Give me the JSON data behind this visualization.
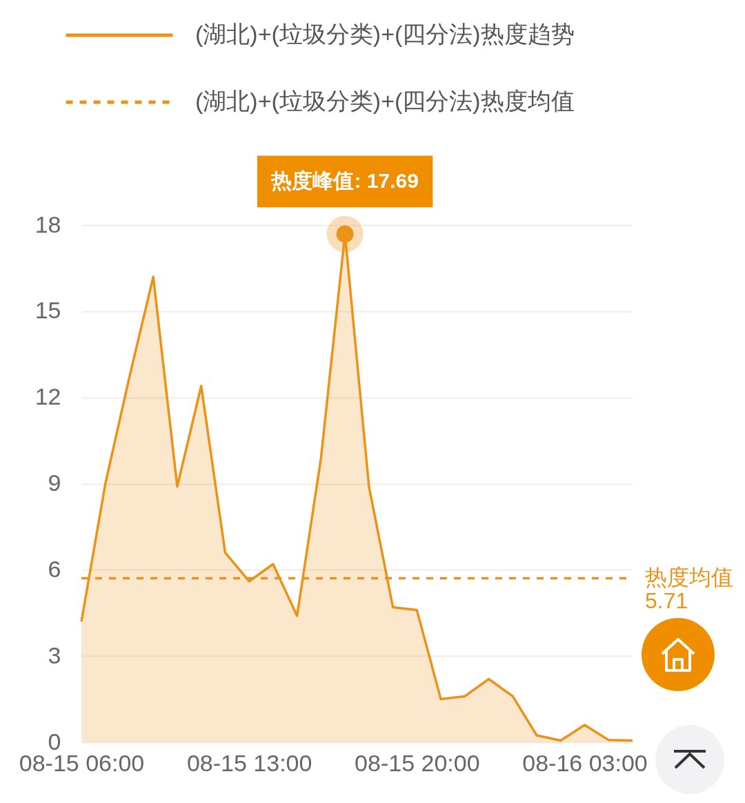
{
  "chart_data": {
    "type": "area",
    "categories": [
      "08-15 06:00",
      null,
      null,
      null,
      null,
      null,
      null,
      "08-15 13:00",
      null,
      null,
      null,
      null,
      null,
      null,
      "08-15 20:00",
      null,
      null,
      null,
      null,
      null,
      null,
      "08-16 03:00",
      null,
      null
    ],
    "series": [
      {
        "name": "(湖北)+(垃圾分类)+(四分法)热度趋势",
        "color": "#eb9318",
        "type": "area",
        "line_style": "solid",
        "values": [
          4.2,
          9.0,
          12.7,
          16.2,
          8.9,
          12.4,
          6.6,
          5.6,
          6.2,
          4.4,
          9.9,
          17.69,
          8.9,
          4.7,
          4.6,
          1.5,
          1.6,
          2.2,
          1.6,
          0.24,
          0.06,
          0.6,
          0.08,
          0.06
        ]
      },
      {
        "name": "(湖北)+(垃圾分类)+(四分法)热度均值",
        "color": "#eb9318",
        "type": "line",
        "line_style": "dashed",
        "values": [
          5.71,
          5.71,
          5.71,
          5.71,
          5.71,
          5.71,
          5.71,
          5.71,
          5.71,
          5.71,
          5.71,
          5.71,
          5.71,
          5.71,
          5.71,
          5.71,
          5.71,
          5.71,
          5.71,
          5.71,
          5.71,
          5.71,
          5.71,
          5.71
        ]
      }
    ],
    "ylim": [
      0,
      18
    ],
    "yticks": [
      0,
      3,
      6,
      9,
      12,
      15,
      18
    ],
    "grid": "y",
    "legend": "top",
    "marker": "none",
    "annotations": [
      {
        "text": "热度峰值: 17.69",
        "y": 17.69
      },
      "热度均值\n5.71"
    ]
  }
}
